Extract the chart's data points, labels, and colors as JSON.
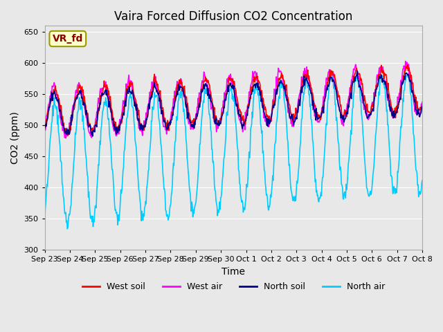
{
  "title": "Vaira Forced Diffusion CO2 Concentration",
  "xlabel": "Time",
  "ylabel": "CO2 (ppm)",
  "ylim": [
    300,
    660
  ],
  "yticks": [
    300,
    350,
    400,
    450,
    500,
    550,
    600,
    650
  ],
  "plot_bg_color": "#e8e8e8",
  "grid_color": "white",
  "label_box_text": "VR_fd",
  "label_box_color": "#ffffcc",
  "label_box_edge_color": "#999900",
  "label_text_color": "#8b0000",
  "colors": {
    "west_soil": "#ff0000",
    "west_air": "#ff00ff",
    "north_soil": "#00008b",
    "north_air": "#00ccff"
  },
  "legend_labels": [
    "West soil",
    "West air",
    "North soil",
    "North air"
  ],
  "x_tick_labels": [
    "Sep 23",
    "Sep 24",
    "Sep 25",
    "Sep 26",
    "Sep 27",
    "Sep 28",
    "Sep 29",
    "Sep 30",
    "Oct 1",
    "Oct 2",
    "Oct 3",
    "Oct 4",
    "Oct 5",
    "Oct 6",
    "Oct 7",
    "Oct 8"
  ],
  "num_days": 15,
  "points_per_day": 48
}
